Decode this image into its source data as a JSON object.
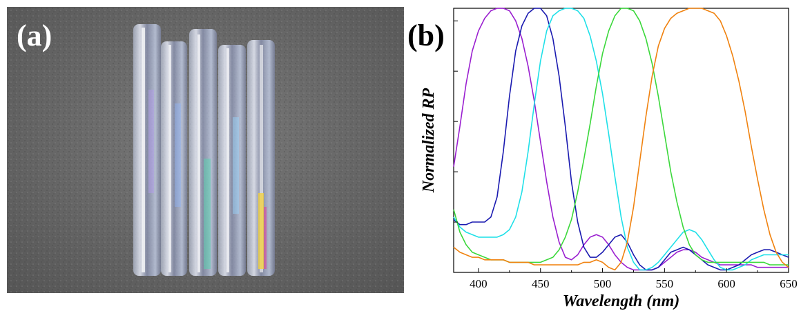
{
  "panels": {
    "a_label": "(a)",
    "b_label": "(b)"
  },
  "photo": {
    "tube_count": 5,
    "background_color": "#6e6e6e"
  },
  "chart_data": {
    "type": "line",
    "title": "",
    "xlabel": "Wavelength (nm)",
    "ylabel": "Normalized RP",
    "xlim": [
      380,
      650
    ],
    "ylim": [
      0,
      1.05
    ],
    "xticks": [
      400,
      450,
      500,
      550,
      600,
      650
    ],
    "yticks_unlabeled": [
      0,
      0.2,
      0.4,
      0.6,
      0.8,
      1.0
    ],
    "grid": false,
    "legend": "none",
    "series": [
      {
        "color": "#9a1fd0",
        "x": [
          380,
          385,
          390,
          395,
          400,
          405,
          410,
          415,
          420,
          425,
          430,
          435,
          440,
          445,
          450,
          455,
          460,
          465,
          470,
          475,
          480,
          485,
          490,
          495,
          500,
          505,
          510,
          515,
          520,
          525,
          530,
          535,
          540,
          545,
          550,
          555,
          560,
          565,
          570,
          575,
          580,
          585,
          590,
          595,
          600,
          605,
          610,
          615,
          620,
          625,
          630,
          635,
          640,
          645,
          650
        ],
        "y": [
          0.42,
          0.58,
          0.75,
          0.88,
          0.96,
          1.01,
          1.04,
          1.05,
          1.05,
          1.04,
          1.0,
          0.93,
          0.82,
          0.68,
          0.52,
          0.36,
          0.22,
          0.12,
          0.06,
          0.05,
          0.07,
          0.11,
          0.14,
          0.15,
          0.14,
          0.11,
          0.07,
          0.04,
          0.02,
          0.01,
          0.01,
          0.01,
          0.01,
          0.02,
          0.04,
          0.06,
          0.08,
          0.09,
          0.09,
          0.08,
          0.06,
          0.05,
          0.04,
          0.03,
          0.03,
          0.03,
          0.03,
          0.03,
          0.03,
          0.02,
          0.02,
          0.02,
          0.02,
          0.02,
          0.02
        ]
      },
      {
        "color": "#1a1ab0",
        "x": [
          380,
          385,
          390,
          395,
          400,
          405,
          410,
          415,
          420,
          425,
          430,
          435,
          440,
          445,
          450,
          455,
          460,
          465,
          470,
          475,
          480,
          485,
          490,
          495,
          500,
          505,
          510,
          515,
          520,
          525,
          530,
          535,
          540,
          545,
          550,
          555,
          560,
          565,
          570,
          575,
          580,
          585,
          590,
          595,
          600,
          605,
          610,
          615,
          620,
          625,
          630,
          635,
          640,
          645,
          650
        ],
        "y": [
          0.21,
          0.19,
          0.19,
          0.2,
          0.2,
          0.2,
          0.22,
          0.3,
          0.48,
          0.7,
          0.88,
          0.98,
          1.03,
          1.05,
          1.05,
          1.02,
          0.93,
          0.78,
          0.58,
          0.36,
          0.2,
          0.1,
          0.06,
          0.06,
          0.08,
          0.11,
          0.14,
          0.15,
          0.12,
          0.07,
          0.03,
          0.01,
          0.01,
          0.02,
          0.05,
          0.08,
          0.09,
          0.1,
          0.09,
          0.07,
          0.05,
          0.03,
          0.02,
          0.01,
          0.01,
          0.02,
          0.03,
          0.05,
          0.07,
          0.08,
          0.09,
          0.09,
          0.08,
          0.07,
          0.06
        ]
      },
      {
        "color": "#1fe0e8",
        "x": [
          380,
          385,
          390,
          395,
          400,
          405,
          410,
          415,
          420,
          425,
          430,
          435,
          440,
          445,
          450,
          455,
          460,
          465,
          470,
          475,
          480,
          485,
          490,
          495,
          500,
          505,
          510,
          515,
          520,
          525,
          530,
          535,
          540,
          545,
          550,
          555,
          560,
          565,
          570,
          575,
          580,
          585,
          590,
          595,
          600,
          605,
          610,
          615,
          620,
          625,
          630,
          635,
          640,
          645,
          650
        ],
        "y": [
          0.22,
          0.18,
          0.16,
          0.15,
          0.14,
          0.14,
          0.14,
          0.14,
          0.15,
          0.17,
          0.22,
          0.32,
          0.48,
          0.67,
          0.84,
          0.96,
          1.02,
          1.04,
          1.05,
          1.05,
          1.04,
          1.01,
          0.94,
          0.84,
          0.71,
          0.55,
          0.38,
          0.22,
          0.1,
          0.04,
          0.01,
          0.01,
          0.02,
          0.04,
          0.07,
          0.1,
          0.13,
          0.16,
          0.17,
          0.16,
          0.13,
          0.09,
          0.05,
          0.02,
          0.01,
          0.01,
          0.02,
          0.03,
          0.05,
          0.06,
          0.07,
          0.07,
          0.07,
          0.07,
          0.07
        ]
      },
      {
        "color": "#3bd83b",
        "x": [
          380,
          385,
          390,
          395,
          400,
          405,
          410,
          415,
          420,
          425,
          430,
          435,
          440,
          445,
          450,
          455,
          460,
          465,
          470,
          475,
          480,
          485,
          490,
          495,
          500,
          505,
          510,
          515,
          520,
          525,
          530,
          535,
          540,
          545,
          550,
          555,
          560,
          565,
          570,
          575,
          580,
          585,
          590,
          595,
          600,
          605,
          610,
          615,
          620,
          625,
          630,
          635,
          640,
          645,
          650
        ],
        "y": [
          0.25,
          0.16,
          0.11,
          0.08,
          0.07,
          0.06,
          0.05,
          0.05,
          0.05,
          0.04,
          0.04,
          0.04,
          0.04,
          0.04,
          0.04,
          0.05,
          0.06,
          0.09,
          0.14,
          0.21,
          0.32,
          0.45,
          0.59,
          0.74,
          0.87,
          0.96,
          1.02,
          1.05,
          1.05,
          1.04,
          1.0,
          0.93,
          0.83,
          0.7,
          0.55,
          0.4,
          0.28,
          0.18,
          0.11,
          0.07,
          0.05,
          0.04,
          0.04,
          0.04,
          0.04,
          0.04,
          0.04,
          0.04,
          0.04,
          0.04,
          0.04,
          0.03,
          0.03,
          0.03,
          0.03
        ]
      },
      {
        "color": "#f0820f",
        "x": [
          380,
          385,
          390,
          395,
          400,
          405,
          410,
          415,
          420,
          425,
          430,
          435,
          440,
          445,
          450,
          455,
          460,
          465,
          470,
          475,
          480,
          485,
          490,
          495,
          500,
          505,
          510,
          515,
          520,
          525,
          530,
          535,
          540,
          545,
          550,
          555,
          560,
          565,
          570,
          575,
          580,
          585,
          590,
          595,
          600,
          605,
          610,
          615,
          620,
          625,
          630,
          635,
          640,
          645,
          650
        ],
        "y": [
          0.1,
          0.08,
          0.07,
          0.06,
          0.06,
          0.05,
          0.05,
          0.05,
          0.05,
          0.04,
          0.04,
          0.04,
          0.04,
          0.03,
          0.03,
          0.03,
          0.03,
          0.03,
          0.03,
          0.03,
          0.03,
          0.04,
          0.04,
          0.05,
          0.04,
          0.02,
          0.01,
          0.04,
          0.12,
          0.26,
          0.44,
          0.62,
          0.78,
          0.9,
          0.97,
          1.01,
          1.03,
          1.04,
          1.05,
          1.05,
          1.05,
          1.04,
          1.03,
          1.0,
          0.94,
          0.86,
          0.76,
          0.64,
          0.5,
          0.37,
          0.25,
          0.15,
          0.08,
          0.04,
          0.02
        ]
      }
    ]
  }
}
